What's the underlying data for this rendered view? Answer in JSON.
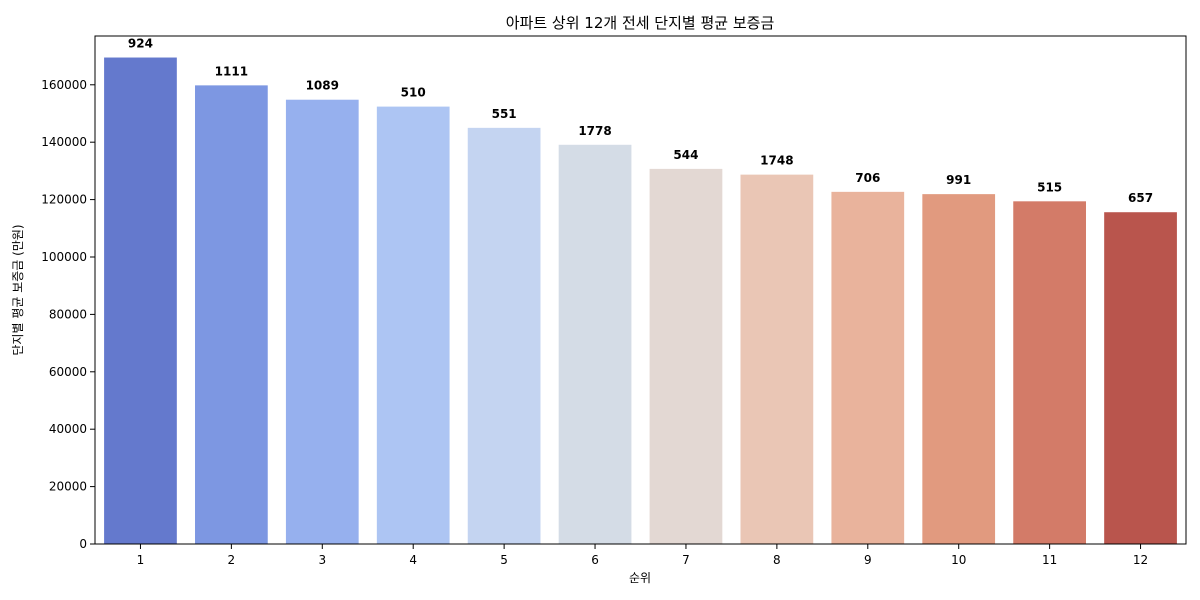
{
  "chart_data": {
    "type": "bar",
    "title": "아파트 상위 12개 전세 단지별 평균 보증금",
    "xlabel": "순위",
    "ylabel": "단지별 평균 보증금 (만원)",
    "categories": [
      "1",
      "2",
      "3",
      "4",
      "5",
      "6",
      "7",
      "8",
      "9",
      "10",
      "11",
      "12"
    ],
    "values": [
      169500,
      159800,
      154800,
      152400,
      145000,
      139100,
      130700,
      128700,
      122700,
      121900,
      119400,
      115600
    ],
    "bar_labels": [
      "924",
      "1111",
      "1089",
      "510",
      "551",
      "1778",
      "544",
      "1748",
      "706",
      "991",
      "515",
      "657"
    ],
    "colors": [
      "#6479cd",
      "#7d97e2",
      "#96b0ee",
      "#adc5f3",
      "#c4d4f1",
      "#d4dce6",
      "#e3d8d3",
      "#eac6b5",
      "#e9b39c",
      "#e19a7f",
      "#d37b68",
      "#b9554d"
    ],
    "ylim": [
      0,
      177000
    ],
    "yticks": [
      0,
      20000,
      40000,
      60000,
      80000,
      100000,
      120000,
      140000,
      160000
    ]
  }
}
